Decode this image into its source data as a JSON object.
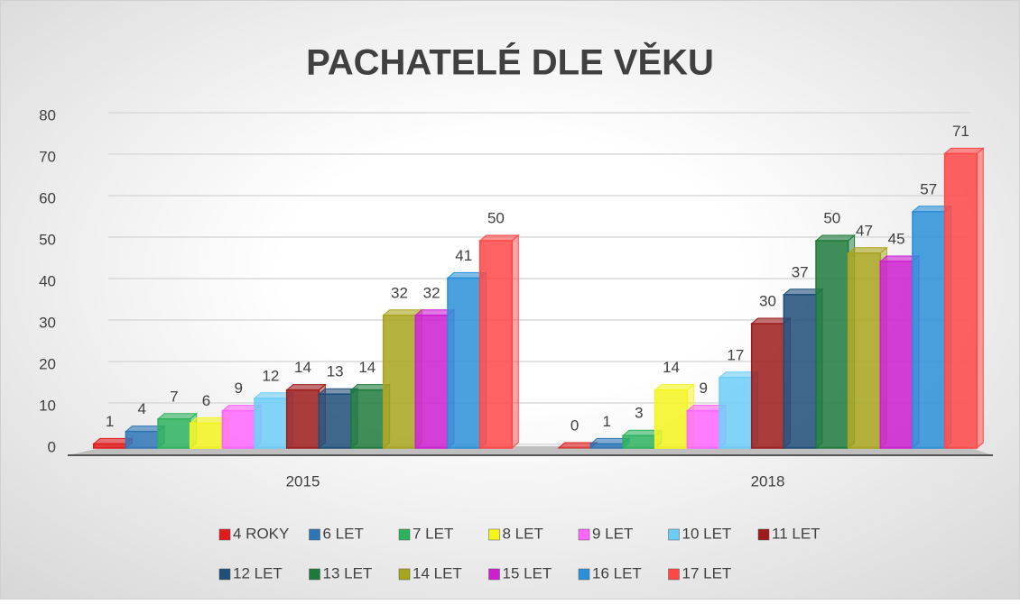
{
  "chart_data": {
    "type": "bar",
    "title": "PACHATELÉ DLE VĚKU",
    "categories": [
      "2015",
      "2018"
    ],
    "series": [
      {
        "name": "4 ROKY",
        "color": "#e21b1b",
        "values": [
          1,
          0
        ]
      },
      {
        "name": "6 LET",
        "color": "#2e75b6",
        "values": [
          4,
          1
        ]
      },
      {
        "name": "7 LET",
        "color": "#2db35d",
        "values": [
          7,
          3
        ]
      },
      {
        "name": "8 LET",
        "color": "#f5f51e",
        "values": [
          6,
          14
        ]
      },
      {
        "name": "9 LET",
        "color": "#ff66ff",
        "values": [
          9,
          9
        ]
      },
      {
        "name": "10 LET",
        "color": "#6ccdf7",
        "values": [
          12,
          17
        ]
      },
      {
        "name": "11 LET",
        "color": "#9e1b1b",
        "values": [
          14,
          30
        ]
      },
      {
        "name": "12 LET",
        "color": "#1f4e79",
        "values": [
          13,
          37
        ]
      },
      {
        "name": "13 LET",
        "color": "#1e7a3c",
        "values": [
          14,
          50
        ]
      },
      {
        "name": "14 LET",
        "color": "#a8a41e",
        "values": [
          32,
          47
        ]
      },
      {
        "name": "15 LET",
        "color": "#cc1fd0",
        "values": [
          32,
          45
        ]
      },
      {
        "name": "16 LET",
        "color": "#2a90d8",
        "values": [
          41,
          57
        ]
      },
      {
        "name": "17 LET",
        "color": "#ff4747",
        "values": [
          50,
          71
        ]
      }
    ],
    "ylim": [
      0,
      80
    ],
    "yticks": [
      0,
      10,
      20,
      30,
      40,
      50,
      60,
      70,
      80
    ],
    "grid": true
  }
}
